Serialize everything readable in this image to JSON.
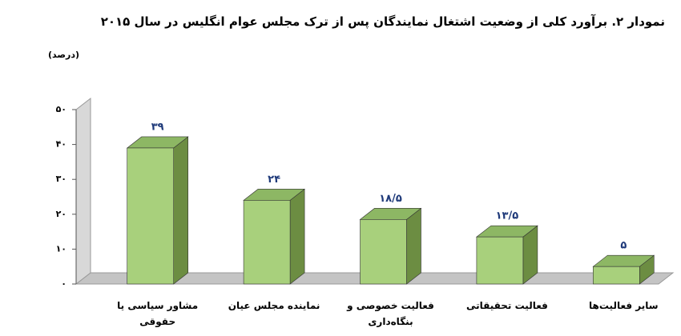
{
  "chart_data": {
    "type": "bar3d",
    "title": "نمودار ۲. برآورد کلی از وضعیت اشتغال نمایندگان پس از ترک مجلس عوام انگلیس در سال ۲۰۱۵",
    "y_label": "(درصد)",
    "categories": [
      "مشاور سیاسی یا حقوقی",
      "نماینده مجلس عیان",
      "فعالیت خصوصی و بنگاه‌داری",
      "فعالیت تحقیقاتی",
      "سایر فعالیت‌ها"
    ],
    "values": [
      39,
      24,
      18.5,
      13.5,
      5
    ],
    "value_labels": [
      "۳۹",
      "۲۴",
      "۱۸/۵",
      "۱۳/۵",
      "۵"
    ],
    "colors": {
      "front": "#a8d07c",
      "top": "#8db764",
      "side": "#6c8d42"
    },
    "ylim": [
      0,
      50
    ],
    "yticks": [
      {
        "value": 0,
        "label": "۰"
      },
      {
        "value": 10,
        "label": "۱۰"
      },
      {
        "value": 20,
        "label": "۲۰"
      },
      {
        "value": 30,
        "label": "۳۰"
      },
      {
        "value": 40,
        "label": "۴۰"
      },
      {
        "value": 50,
        "label": "۵۰"
      }
    ]
  }
}
